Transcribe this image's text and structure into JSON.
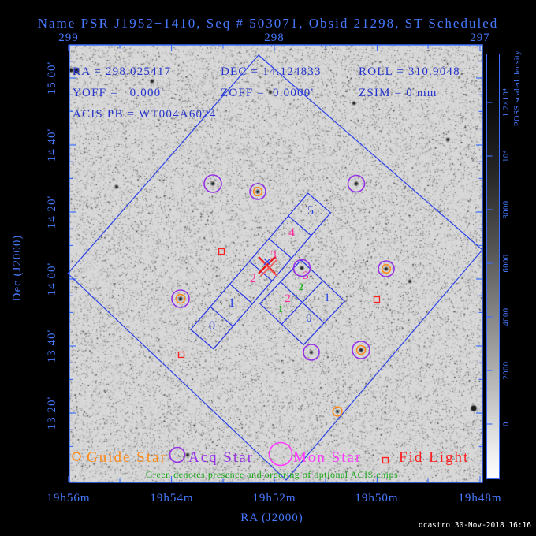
{
  "title": "Name PSR J1952+1410, Seq # 503071, Obsid 21298, ST Scheduled",
  "info": {
    "ra": "RA = 298.025417",
    "dec": "DEC = 14.124833",
    "roll": "ROLL = 310.9048",
    "yoff": "YOFF =   0.000'",
    "zoff": "ZOFF =  0.0000'",
    "zsim": "ZSIM = 0 mm",
    "acis_pb": "ACIS PB = WT004A6024"
  },
  "axes": {
    "x_label": "RA (J2000)",
    "y_label": "Dec (J2000)",
    "top_tick_labels": [
      "299",
      "298",
      "297"
    ],
    "bottom_tick_labels": [
      "19h56m",
      "19h54m",
      "19h52m",
      "19h50m",
      "19h48m"
    ],
    "left_tick_labels": [
      "15 00'",
      "14 40'",
      "14 20'",
      "14 00'",
      "13 40'",
      "13 20'"
    ]
  },
  "colorbar": {
    "title": "POSS scaled density",
    "tick_labels": [
      "1.2×10⁴",
      "10⁴",
      "8000",
      "6000",
      "4000",
      "2000",
      "0"
    ]
  },
  "detector": {
    "acis_s_labels": [
      "0",
      "1",
      "2",
      "3",
      "4",
      "5"
    ],
    "acis_s_colors": [
      "#2840e0",
      "#2840e0",
      "#ff2f9e",
      "#ff2f9e",
      "#ff2f9e",
      "#2840e0"
    ],
    "acis_i_labels": [
      "0",
      "1",
      "2",
      "3"
    ],
    "acis_i_colors": [
      "#2840e0",
      "#2840e0",
      "#ff2f9e",
      "#ff2f9e"
    ],
    "optional_chip_order": [
      "1",
      "2"
    ]
  },
  "legend": {
    "items": [
      {
        "label": "Guide Star",
        "color": "#ff8c1a"
      },
      {
        "label": "Acq Star",
        "color": "#9530e6"
      },
      {
        "label": "Mon Star",
        "color": "#ff3cff"
      },
      {
        "label": "Fid Light",
        "color": "#ff2020"
      }
    ]
  },
  "footnote": "Green denotes presence and ordering of optional ACIS chips",
  "credit": "dcastro 30-Nov-2018 16:16",
  "colors": {
    "outer_text": "#4679ff",
    "info_text": "#2533cc",
    "frame": "#3d6fff",
    "fov_outline": "#2d44e8",
    "chip_outline": "#2636e6",
    "green": "#18a818",
    "target_red": "#e81818",
    "target_blue": "#2d44e8",
    "guide_orange": "#ff8c1a",
    "acq_purple": "#9530e6",
    "mon_magenta": "#ff3cff",
    "fid_red": "#ff2020",
    "sky": "#d8d8d8",
    "background": "#000000"
  },
  "chart_data": {
    "type": "scatter",
    "title": "Name PSR J1952+1410, Seq # 503071, Obsid 21298, ST Scheduled",
    "xlabel": "RA (J2000)",
    "ylabel": "Dec (J2000)",
    "x_range_deg": [
      299.0,
      297.0
    ],
    "x_range_hms": [
      "19h56m",
      "19h48m"
    ],
    "y_range_dms": [
      "13 00'",
      "15 10'"
    ],
    "grid": false,
    "background": "POSS digitized sky survey grayscale image",
    "target": {
      "name": "PSR J1952+1410",
      "ra_deg": 298.025417,
      "dec_deg": 14.124833,
      "roll_deg": 310.9048
    },
    "series": [
      {
        "name": "Guide Star",
        "marker": "orange-circle",
        "points_radec": [
          [
            298.09,
            14.44
          ],
          [
            297.47,
            14.05
          ],
          [
            298.46,
            13.9
          ],
          [
            297.6,
            13.64
          ],
          [
            297.69,
            13.34
          ]
        ]
      },
      {
        "name": "Acq Star",
        "marker": "purple-circle",
        "points_radec": [
          [
            298.3,
            14.47
          ],
          [
            297.62,
            14.48
          ],
          [
            297.87,
            14.06
          ],
          [
            297.82,
            13.63
          ]
        ]
      },
      {
        "name": "Mon Star",
        "marker": "magenta-circle",
        "points_radec": []
      },
      {
        "name": "Fid Light",
        "marker": "red-square",
        "points_radec": [
          [
            298.26,
            14.13
          ],
          [
            297.5,
            13.9
          ],
          [
            298.45,
            13.62
          ]
        ]
      }
    ],
    "overlays": [
      "ACIS-S 6-chip linear array outline (chips 0-5, chips 2-4 highlighted)",
      "ACIS-I 2x2 array outline (chips 0-3, chips 2-3 optional with green ordering 1,2)",
      "Square field-of-view outline rotated to roll 310.9048 deg",
      "Red X target marker at aimpoint"
    ]
  }
}
